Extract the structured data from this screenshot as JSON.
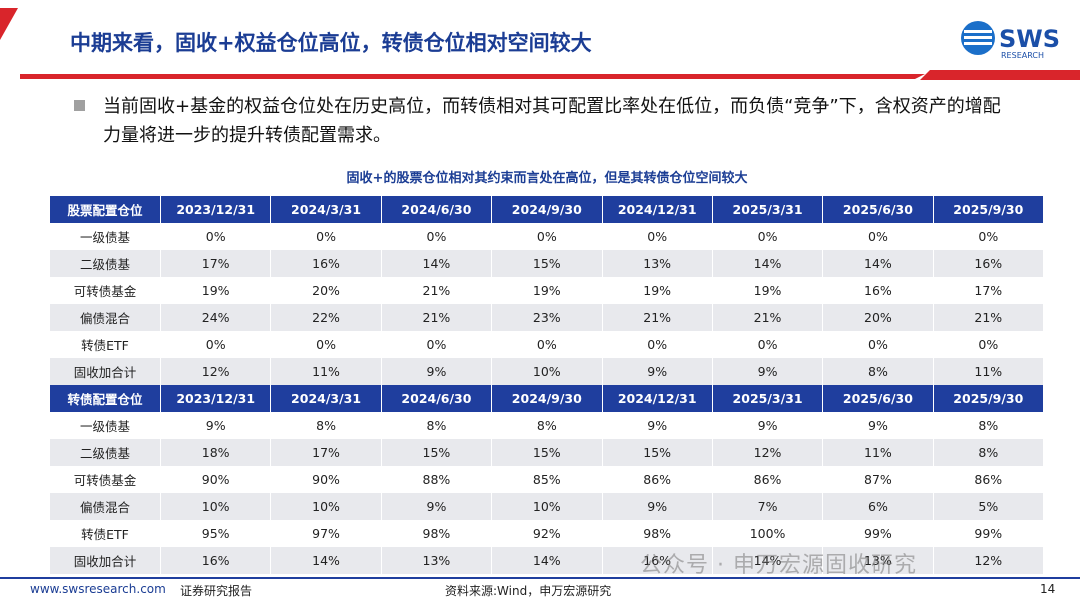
{
  "header": {
    "title": "中期来看，固收+权益仓位高位，转债仓位相对空间较大",
    "logo": "SWS",
    "logo_sub": "RESEARCH"
  },
  "bullet": "当前固收+基金的权益仓位处在历史高位，而转债相对其可配置比率处在低位，而负债“竞争”下，含权资产的增配力量将进一步的提升转债配置需求。",
  "table": {
    "caption": "固收+的股票仓位相对其约束而言处在高位，但是其转债仓位空间较大",
    "sections": [
      {
        "header": [
          "股票配置仓位",
          "2023/12/31",
          "2024/3/31",
          "2024/6/30",
          "2024/9/30",
          "2024/12/31",
          "2025/3/31",
          "2025/6/30",
          "2025/9/30"
        ],
        "rows": [
          [
            "一级债基",
            "0%",
            "0%",
            "0%",
            "0%",
            "0%",
            "0%",
            "0%",
            "0%"
          ],
          [
            "二级债基",
            "17%",
            "16%",
            "14%",
            "15%",
            "13%",
            "14%",
            "14%",
            "16%"
          ],
          [
            "可转债基金",
            "19%",
            "20%",
            "21%",
            "19%",
            "19%",
            "19%",
            "16%",
            "17%"
          ],
          [
            "偏债混合",
            "24%",
            "22%",
            "21%",
            "23%",
            "21%",
            "21%",
            "20%",
            "21%"
          ],
          [
            "转债ETF",
            "0%",
            "0%",
            "0%",
            "0%",
            "0%",
            "0%",
            "0%",
            "0%"
          ],
          [
            "固收加合计",
            "12%",
            "11%",
            "9%",
            "10%",
            "9%",
            "9%",
            "8%",
            "11%"
          ]
        ]
      },
      {
        "header": [
          "转债配置仓位",
          "2023/12/31",
          "2024/3/31",
          "2024/6/30",
          "2024/9/30",
          "2024/12/31",
          "2025/3/31",
          "2025/6/30",
          "2025/9/30"
        ],
        "rows": [
          [
            "一级债基",
            "9%",
            "8%",
            "8%",
            "8%",
            "9%",
            "9%",
            "9%",
            "8%"
          ],
          [
            "二级债基",
            "18%",
            "17%",
            "15%",
            "15%",
            "15%",
            "12%",
            "11%",
            "8%"
          ],
          [
            "可转债基金",
            "90%",
            "90%",
            "88%",
            "85%",
            "86%",
            "86%",
            "87%",
            "86%"
          ],
          [
            "偏债混合",
            "10%",
            "10%",
            "9%",
            "10%",
            "9%",
            "7%",
            "6%",
            "5%"
          ],
          [
            "转债ETF",
            "95%",
            "97%",
            "98%",
            "92%",
            "98%",
            "100%",
            "99%",
            "99%"
          ],
          [
            "固收加合计",
            "16%",
            "14%",
            "13%",
            "14%",
            "16%",
            "14%",
            "13%",
            "12%"
          ]
        ]
      }
    ]
  },
  "footer": {
    "website": "www.swsresearch.com",
    "report_type": "证券研究报告",
    "source": "资料来源:Wind，申万宏源研究",
    "page": "14"
  },
  "watermark": "公众号 · 申万宏源固收研究"
}
